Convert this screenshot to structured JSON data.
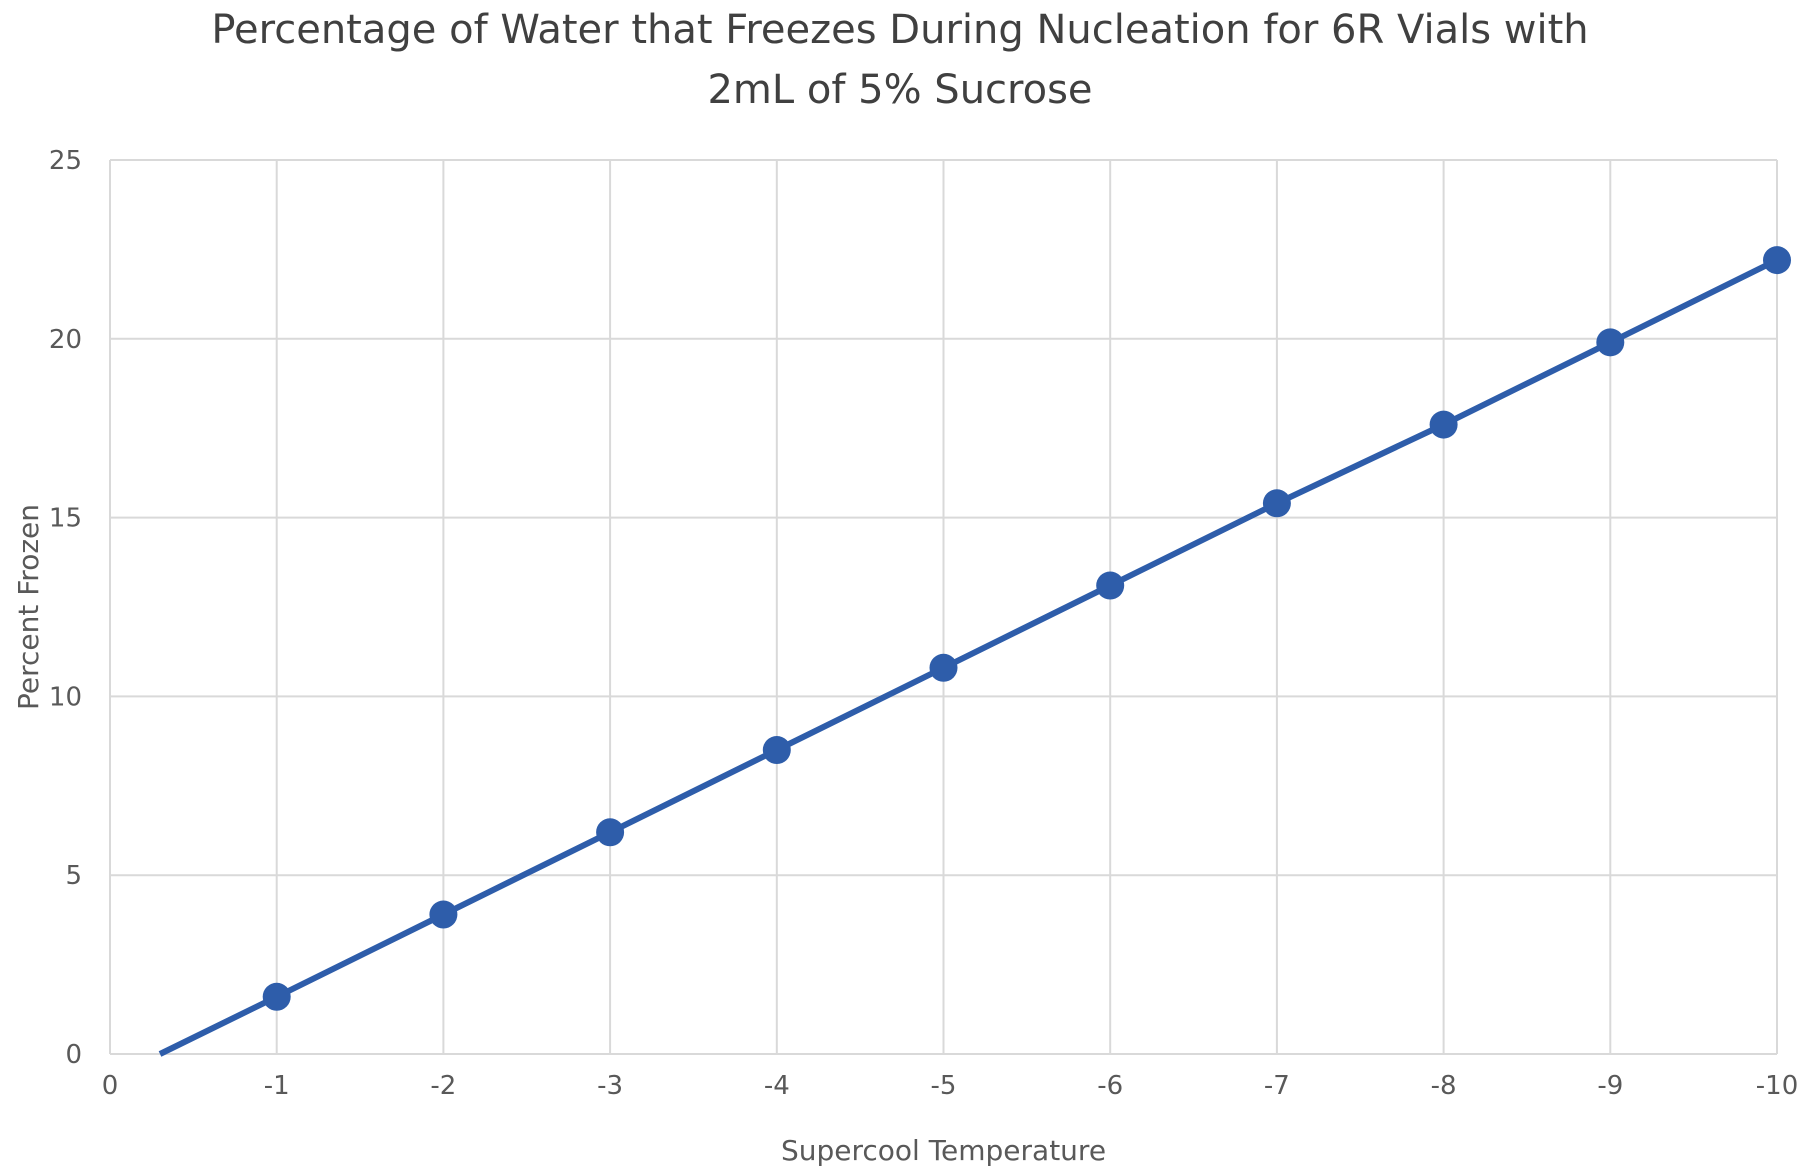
{
  "chart_data": {
    "type": "line",
    "title_lines": [
      "Percentage of Water that Freezes During Nucleation for 6R Vials with",
      "2mL of 5% Sucrose"
    ],
    "xlabel": "Supercool Temperature",
    "ylabel": "Percent Frozen",
    "xlim": [
      0,
      -10
    ],
    "ylim": [
      0,
      25
    ],
    "x_ticks": [
      "0",
      "-1",
      "-2",
      "-3",
      "-4",
      "-5",
      "-6",
      "-7",
      "-8",
      "-9",
      "-10"
    ],
    "y_ticks": [
      "0",
      "5",
      "10",
      "15",
      "20",
      "25"
    ],
    "grid": true,
    "legend": "none",
    "series": [
      {
        "color": "#2E5DAA",
        "line_start": {
          "x": -0.3,
          "y": 0
        },
        "points": [
          {
            "x": -1,
            "y": 1.6
          },
          {
            "x": -2,
            "y": 3.9
          },
          {
            "x": -3,
            "y": 6.2
          },
          {
            "x": -4,
            "y": 8.5
          },
          {
            "x": -5,
            "y": 10.8
          },
          {
            "x": -6,
            "y": 13.1
          },
          {
            "x": -7,
            "y": 15.4
          },
          {
            "x": -8,
            "y": 17.6
          },
          {
            "x": -9,
            "y": 19.9
          },
          {
            "x": -10,
            "y": 22.2
          }
        ]
      }
    ],
    "colors": {
      "gridline": "#D9D9D9",
      "axis_text": "#595959",
      "title_text": "#404040"
    }
  }
}
